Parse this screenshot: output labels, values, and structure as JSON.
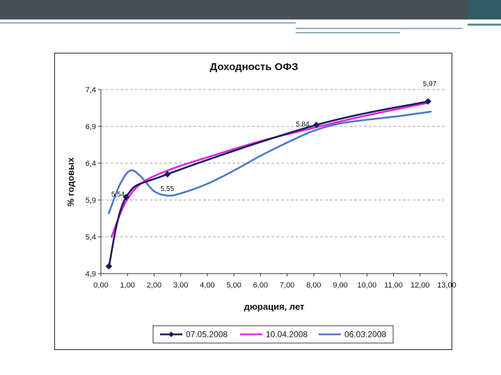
{
  "chart_data": {
    "type": "line",
    "title": "Доходность ОФЗ",
    "xlabel": "дюрация, лет",
    "ylabel": "% годовых",
    "xlim": [
      0,
      13
    ],
    "ylim": [
      4.9,
      7.4
    ],
    "x_ticks": [
      "0,00",
      "1,00",
      "2,00",
      "3,00",
      "4,00",
      "5,00",
      "6,00",
      "7,00",
      "8,00",
      "9,00",
      "10,00",
      "11,00",
      "12,00",
      "13,00"
    ],
    "y_ticks": [
      "4,9",
      "5,4",
      "5,9",
      "6,4",
      "6,9",
      "7,4"
    ],
    "grid": "horizontal-dashed",
    "legend_position": "bottom",
    "series": [
      {
        "name": "07.05.2008",
        "color": "#1a1a5e",
        "marker": "diamond",
        "points": [
          [
            0.3,
            5.0
          ],
          [
            0.95,
            5.94
          ],
          [
            2.5,
            6.25
          ],
          [
            8.1,
            6.92
          ],
          [
            12.3,
            7.24
          ]
        ]
      },
      {
        "name": "10.04.2008",
        "color": "#e026e0",
        "marker": "none",
        "points": [
          [
            0.4,
            5.4
          ],
          [
            0.9,
            5.85
          ],
          [
            1.5,
            6.12
          ],
          [
            2.5,
            6.3
          ],
          [
            4,
            6.48
          ],
          [
            6,
            6.7
          ],
          [
            8,
            6.88
          ],
          [
            10,
            7.05
          ],
          [
            12.3,
            7.22
          ]
        ]
      },
      {
        "name": "06.03.2008",
        "color": "#4a78c8",
        "marker": "none",
        "points": [
          [
            0.3,
            5.72
          ],
          [
            0.7,
            6.1
          ],
          [
            1.1,
            6.3
          ],
          [
            1.5,
            6.22
          ],
          [
            2,
            6.02
          ],
          [
            2.5,
            5.96
          ],
          [
            3,
            5.99
          ],
          [
            4,
            6.12
          ],
          [
            5,
            6.3
          ],
          [
            6,
            6.5
          ],
          [
            7,
            6.68
          ],
          [
            8,
            6.84
          ],
          [
            9,
            6.94
          ],
          [
            10,
            6.99
          ],
          [
            11,
            7.03
          ],
          [
            12,
            7.08
          ],
          [
            12.4,
            7.1
          ]
        ]
      }
    ],
    "data_labels": [
      {
        "text": "5,54",
        "x": 0.95,
        "y": 5.94,
        "anchor": "end",
        "dx": -2,
        "dy": -1
      },
      {
        "text": "5,55",
        "x": 2.5,
        "y": 6.25,
        "anchor": "start",
        "dx": -10,
        "dy": 24
      },
      {
        "text": "5,84",
        "x": 8.1,
        "y": 6.92,
        "anchor": "end",
        "dx": -10,
        "dy": 2
      },
      {
        "text": "5,97",
        "x": 12.3,
        "y": 7.24,
        "anchor": "end",
        "dx": 12,
        "dy": -22
      }
    ]
  }
}
